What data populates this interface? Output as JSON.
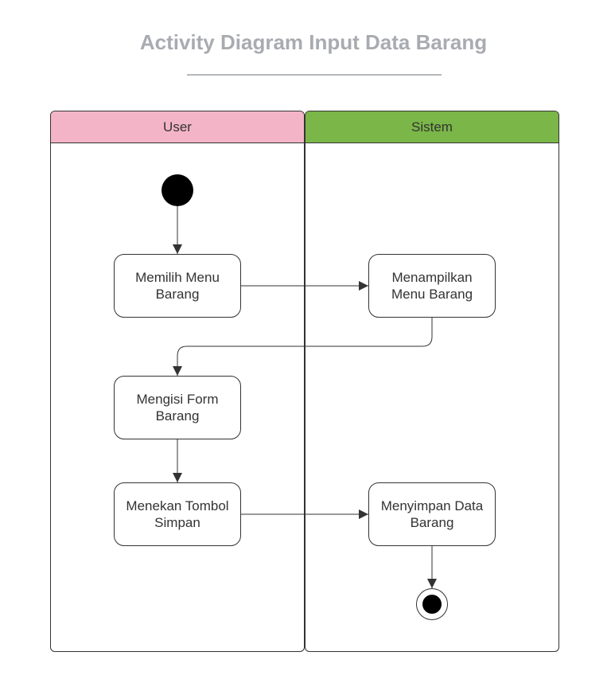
{
  "title": "Activity Diagram Input Data Barang",
  "lanes": {
    "user": {
      "label": "User",
      "color": "#f4b4c8"
    },
    "sistem": {
      "label": "Sistem",
      "color": "#7ab648"
    }
  },
  "activities": {
    "memilih_menu": "Memilih Menu Barang",
    "menampilkan_menu": "Menampilkan Menu Barang",
    "mengisi_form": "Mengisi Form Barang",
    "menekan_tombol": "Menekan Tombol Simpan",
    "menyimpan_data": "Menyimpan Data Barang"
  },
  "flows": [
    {
      "from": "start",
      "to": "memilih_menu"
    },
    {
      "from": "memilih_menu",
      "to": "menampilkan_menu"
    },
    {
      "from": "menampilkan_menu",
      "to": "mengisi_form"
    },
    {
      "from": "mengisi_form",
      "to": "menekan_tombol"
    },
    {
      "from": "menekan_tombol",
      "to": "menyimpan_data"
    },
    {
      "from": "menyimpan_data",
      "to": "end"
    }
  ]
}
